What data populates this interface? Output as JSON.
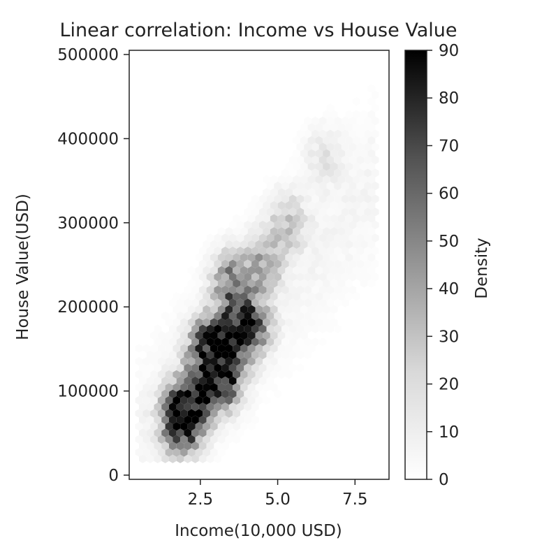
{
  "chart_data": {
    "type": "heatmap",
    "subtype": "hexbin",
    "title": "Linear correlation: Income vs House Value",
    "xlabel": "Income(10,000 USD)",
    "ylabel": "House Value(USD)",
    "xlim": [
      0.2,
      8.6
    ],
    "ylim": [
      -5000,
      505000
    ],
    "x_ticks": [
      2.5,
      5.0,
      7.5
    ],
    "x_tick_labels": [
      "2.5",
      "5.0",
      "7.5"
    ],
    "y_ticks": [
      0,
      100000,
      200000,
      300000,
      400000,
      500000
    ],
    "y_tick_labels": [
      "0",
      "100000",
      "200000",
      "300000",
      "400000",
      "500000"
    ],
    "colormap": "Greys",
    "colorbar": {
      "label": "Density",
      "range": [
        0,
        90
      ],
      "ticks": [
        0,
        10,
        20,
        30,
        40,
        50,
        60,
        70,
        80,
        90
      ],
      "tick_labels": [
        "0",
        "10",
        "20",
        "30",
        "40",
        "50",
        "60",
        "70",
        "80",
        "90"
      ]
    },
    "density_cores": [
      {
        "x": 1.9,
        "y": 65000,
        "density": 90
      },
      {
        "x": 2.3,
        "y": 90000,
        "density": 75
      },
      {
        "x": 2.8,
        "y": 150000,
        "density": 80
      },
      {
        "x": 3.2,
        "y": 118000,
        "density": 85
      },
      {
        "x": 3.6,
        "y": 170000,
        "density": 78
      },
      {
        "x": 4.1,
        "y": 180000,
        "density": 55
      },
      {
        "x": 3.5,
        "y": 230000,
        "density": 40
      },
      {
        "x": 4.5,
        "y": 250000,
        "density": 28
      },
      {
        "x": 5.3,
        "y": 300000,
        "density": 18
      },
      {
        "x": 6.5,
        "y": 380000,
        "density": 8
      }
    ]
  }
}
